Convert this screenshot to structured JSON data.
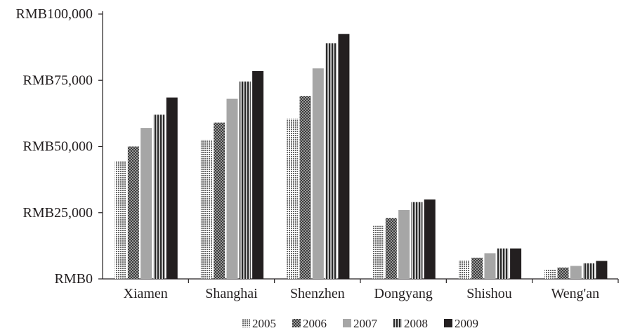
{
  "chart_data": {
    "type": "bar",
    "title": "",
    "xlabel": "",
    "ylabel": "",
    "ylim": [
      0,
      100000
    ],
    "yticks": [
      {
        "value": 0,
        "label": "RMB0"
      },
      {
        "value": 25000,
        "label": "RMB25,000"
      },
      {
        "value": 50000,
        "label": "RMB50,000"
      },
      {
        "value": 75000,
        "label": "RMB75,000"
      },
      {
        "value": 100000,
        "label": "RMB100,000"
      }
    ],
    "categories": [
      "Xiamen",
      "Shanghai",
      "Shenzhen",
      "Dongyang",
      "Shishou",
      "Weng'an"
    ],
    "series": [
      {
        "name": "2005",
        "color": "#bdbdbd",
        "pattern": "dots",
        "values": [
          44500,
          52500,
          60500,
          20000,
          7000,
          3500
        ]
      },
      {
        "name": "2006",
        "color": "#6f6f6f",
        "pattern": "checker",
        "values": [
          50000,
          59000,
          69000,
          23000,
          8000,
          4300
        ]
      },
      {
        "name": "2007",
        "color": "#a6a6a6",
        "pattern": "solid",
        "values": [
          57000,
          68000,
          79500,
          26000,
          9700,
          4900
        ]
      },
      {
        "name": "2008",
        "color": "#555555",
        "pattern": "vstripes",
        "values": [
          62000,
          74500,
          89000,
          29000,
          11500,
          5900
        ]
      },
      {
        "name": "2009",
        "color": "#231f20",
        "pattern": "solid",
        "values": [
          68500,
          78500,
          92500,
          30000,
          11500,
          6800
        ]
      }
    ],
    "grid": false,
    "legend_position": "bottom"
  }
}
